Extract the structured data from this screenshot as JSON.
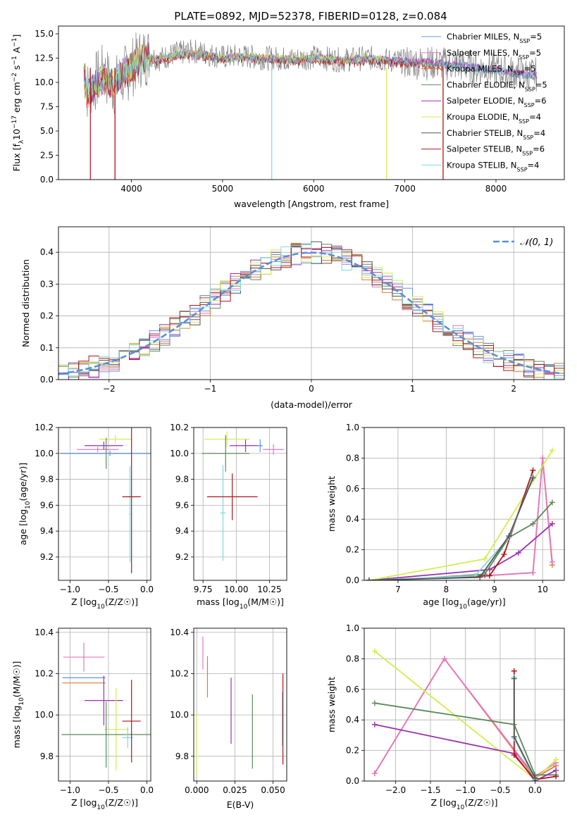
{
  "figure_title": "PLATE=0892, MJD=52378, FIBERID=0128, z=0.084",
  "colors": {
    "chabrier_miles": "#6495ed",
    "salpeter_miles": "#e377c2",
    "kroupa_miles": "#e07b39",
    "chabrier_elodie": "#5b8a5b",
    "salpeter_elodie": "#9b2fae",
    "kroupa_elodie": "#d4ed4a",
    "chabrier_stelib": "#7f7f7f",
    "salpeter_stelib": "#b0141c",
    "kroupa_stelib": "#7fd8dc",
    "normal_curve": "#5b8fd6"
  },
  "chart_data": [
    {
      "id": "spectrum",
      "type": "line",
      "title": "PLATE=0892, MJD=52378, FIBERID=0128, z=0.084",
      "xlabel": "wavelength [Angstrom, rest frame]",
      "ylabel": "Flux [f",
      "ylabel_full": "Flux [f_λ 10^-17 erg cm^-2 s^-1 A^-1]",
      "xlim": [
        3200,
        8750
      ],
      "ylim": [
        0,
        15.8
      ],
      "xticks": [
        4000,
        5000,
        6000,
        7000,
        8000
      ],
      "yticks": [
        0.0,
        2.5,
        5.0,
        7.5,
        10.0,
        12.5,
        15.0
      ],
      "legend_position": "right",
      "series": [
        {
          "name": "Chabrier MILES, N",
          "sub": "SSP",
          "tail": "=5",
          "color": "#6495ed"
        },
        {
          "name": "Salpeter MILES, N",
          "sub": "SSP",
          "tail": "=5",
          "color": "#e377c2"
        },
        {
          "name": "Kroupa MILES, N",
          "sub": "SSP",
          "tail": "=5",
          "color": "#e07b39"
        },
        {
          "name": "Chabrier ELODIE, N",
          "sub": "SSP",
          "tail": "=5",
          "color": "#5b8a5b"
        },
        {
          "name": "Salpeter ELODIE, N",
          "sub": "SSP",
          "tail": "=6",
          "color": "#9b2fae"
        },
        {
          "name": "Kroupa ELODIE, N",
          "sub": "SSP",
          "tail": "=4",
          "color": "#d4ed4a"
        },
        {
          "name": "Chabrier STELIB, N",
          "sub": "SSP",
          "tail": "=4",
          "color": "#555555"
        },
        {
          "name": "Salpeter STELIB, N",
          "sub": "SSP",
          "tail": "=6",
          "color": "#b0141c"
        },
        {
          "name": "Kroupa STELIB, N",
          "sub": "SSP",
          "tail": "=4",
          "color": "#7fd8dc"
        }
      ],
      "data_trace": {
        "x": [
          3500,
          3600,
          3700,
          3800,
          3900,
          4000,
          4100,
          4200,
          4300,
          4500,
          4700,
          5000,
          5200,
          5500,
          5800,
          6000,
          6300,
          6600,
          6900,
          7200,
          7500,
          7800,
          8000,
          8200,
          8400
        ],
        "y": [
          9.0,
          10.0,
          11.0,
          9.5,
          10.5,
          11.5,
          12.5,
          12.8,
          12.4,
          13.0,
          13.2,
          12.6,
          12.7,
          12.5,
          12.4,
          12.6,
          12.3,
          12.5,
          12.2,
          12.0,
          11.9,
          11.5,
          11.3,
          11.0,
          10.8
        ]
      },
      "model_trace": {
        "x": [
          3500,
          3600,
          3700,
          3800,
          3900,
          4000,
          4100,
          4200,
          4300,
          4500,
          4700,
          5000,
          5200,
          5500,
          5800,
          6000,
          6300,
          6600,
          6900,
          7200,
          7500,
          7800,
          8000,
          8200,
          8400
        ],
        "y": [
          8.8,
          9.6,
          10.4,
          9.8,
          10.8,
          11.6,
          12.2,
          12.5,
          12.3,
          12.8,
          12.9,
          12.5,
          12.6,
          12.4,
          12.3,
          12.5,
          12.2,
          12.4,
          12.1,
          12.0,
          11.8,
          11.4,
          11.2,
          10.9,
          10.7
        ]
      }
    },
    {
      "id": "residuals",
      "type": "line",
      "xlabel": "(data-model)/error",
      "ylabel": "Normed distribution",
      "xlim": [
        -2.5,
        2.5
      ],
      "ylim": [
        0,
        0.48
      ],
      "xticks": [
        -2,
        -1,
        0,
        1,
        2
      ],
      "yticks": [
        0.0,
        0.1,
        0.2,
        0.3,
        0.4
      ],
      "grid": true,
      "legend_position": "top-right",
      "legend_label": "𝒩(0, 1)",
      "normal": {
        "mean": 0,
        "sigma": 1
      }
    },
    {
      "id": "age_vs_Z",
      "type": "scatter",
      "xlabel": "Z [log",
      "xlabel_full": "Z [log10(Z/Z⊙)]",
      "ylabel": "age  [log",
      "ylabel_full": "age  [log10(age/yr)]",
      "xlim": [
        -1.15,
        0.05
      ],
      "ylim": [
        9.02,
        10.2
      ],
      "xticks": [
        -1.0,
        -0.5,
        0.0
      ],
      "yticks": [
        9.2,
        9.4,
        9.6,
        9.8,
        10.0,
        10.2
      ],
      "grid": true,
      "points": [
        {
          "x": -0.64,
          "xerr": 0.27,
          "y": 10.03,
          "yerr": 0.02,
          "color": "#e377c2"
        },
        {
          "x": -0.56,
          "xerr": 0.25,
          "y": 10.06,
          "yerr": 0.03,
          "color": "#9b2fae"
        },
        {
          "x": -0.41,
          "xerr": 0.21,
          "y": 10.11,
          "yerr": 0.03,
          "color": "#d4ed4a"
        },
        {
          "x": -0.53,
          "xerr": 0.6,
          "y": 10.0,
          "yerr": 0.12,
          "color": "#5b8a5b"
        },
        {
          "x": -0.48,
          "xerr": 0.62,
          "y": 10.0,
          "yerr": 0.02,
          "color": "#6495ed"
        },
        {
          "x": -0.22,
          "xerr": 0.01,
          "y": 9.53,
          "yerr": 0.37,
          "color": "#7fd8dc"
        },
        {
          "x": -0.2,
          "xerr": 0.12,
          "y": 9.665,
          "yerr": 0.59,
          "color": "#b0141c"
        }
      ]
    },
    {
      "id": "age_vs_mass",
      "type": "scatter",
      "xlabel": "mass [log",
      "xlabel_full": "mass [log10(M/M⊙)]",
      "xlim": [
        9.68,
        10.38
      ],
      "ylim": [
        9.02,
        10.2
      ],
      "xticks": [
        9.75,
        10.0,
        10.25
      ],
      "yticks": [
        9.2,
        9.4,
        9.6,
        9.8,
        10.0,
        10.2
      ],
      "grid": true,
      "points": [
        {
          "x": 10.28,
          "xerr": 0.08,
          "y": 10.03,
          "yerr": 0.04,
          "color": "#e377c2"
        },
        {
          "x": 10.07,
          "xerr": 0.12,
          "y": 10.06,
          "yerr": 0.05,
          "color": "#9b2fae"
        },
        {
          "x": 9.93,
          "xerr": 0.17,
          "y": 10.11,
          "yerr": 0.06,
          "color": "#d4ed4a"
        },
        {
          "x": 9.92,
          "xerr": 0.18,
          "y": 10.0,
          "yerr": 0.14,
          "color": "#5b8a5b"
        },
        {
          "x": 10.18,
          "xerr": 0.02,
          "y": 10.06,
          "yerr": 0.05,
          "color": "#6495ed"
        },
        {
          "x": 9.9,
          "xerr": 0.02,
          "y": 9.54,
          "yerr": 0.37,
          "color": "#7fd8dc"
        },
        {
          "x": 9.97,
          "xerr": 0.19,
          "y": 9.665,
          "yerr": 0.18,
          "color": "#b0141c"
        }
      ]
    },
    {
      "id": "age_mass_weight",
      "type": "line",
      "xlabel": "age  [log",
      "xlabel_full": "age  [log10(age/yr)]",
      "ylabel": "mass weight",
      "xlim": [
        6.3,
        10.45
      ],
      "ylim": [
        0,
        1.0
      ],
      "xticks": [
        7,
        8,
        9,
        10
      ],
      "yticks": [
        0.0,
        0.2,
        0.4,
        0.6,
        0.8,
        1.0
      ],
      "grid": true,
      "series": [
        {
          "color": "#e07b39",
          "x": [
            6.4,
            8.8,
            9.8,
            10.0,
            10.2
          ],
          "y": [
            0.0,
            0.03,
            0.05,
            0.8,
            0.1
          ]
        },
        {
          "color": "#e377c2",
          "x": [
            6.4,
            8.8,
            9.8,
            10.0,
            10.2
          ],
          "y": [
            0.0,
            0.03,
            0.05,
            0.8,
            0.12
          ]
        },
        {
          "color": "#9b2fae",
          "x": [
            6.4,
            8.9,
            9.5,
            10.2
          ],
          "y": [
            0.0,
            0.07,
            0.18,
            0.37
          ]
        },
        {
          "color": "#5b8a5b",
          "x": [
            6.8,
            8.8,
            9.3,
            9.8,
            10.2
          ],
          "y": [
            0.0,
            0.04,
            0.28,
            0.37,
            0.51
          ]
        },
        {
          "color": "#d4ed4a",
          "x": [
            6.4,
            8.8,
            10.2
          ],
          "y": [
            0.0,
            0.14,
            0.85
          ]
        },
        {
          "color": "#b0141c",
          "x": [
            6.4,
            8.9,
            9.2,
            9.8
          ],
          "y": [
            0.0,
            0.03,
            0.17,
            0.72
          ]
        },
        {
          "color": "#7fd8dc",
          "x": [
            6.4,
            8.6,
            9.3,
            9.8
          ],
          "y": [
            0.0,
            0.03,
            0.28,
            0.68
          ]
        },
        {
          "color": "#555555",
          "x": [
            6.4,
            8.7,
            9.3,
            9.8
          ],
          "y": [
            0.0,
            0.02,
            0.29,
            0.67
          ]
        }
      ]
    },
    {
      "id": "mass_vs_Z",
      "type": "scatter",
      "xlabel": "Z [log",
      "xlabel_full": "Z [log10(Z/Z⊙)]",
      "ylabel": "mass [log",
      "ylabel_full": "mass [log10(M/M⊙)]",
      "xlim": [
        -1.15,
        0.05
      ],
      "ylim": [
        9.68,
        10.42
      ],
      "xticks": [
        -1.0,
        -0.5,
        0.0
      ],
      "yticks": [
        9.8,
        10.0,
        10.2,
        10.4
      ],
      "grid": true,
      "points": [
        {
          "x": -0.82,
          "xerr": 0.27,
          "y": 10.28,
          "yerr": 0.07,
          "color": "#e377c2"
        },
        {
          "x": -0.82,
          "xerr": 0.28,
          "y": 10.18,
          "yerr": 0.0,
          "color": "#6495ed"
        },
        {
          "x": -0.82,
          "xerr": 0.28,
          "y": 10.155,
          "yerr": 0.0,
          "color": "#e07b39"
        },
        {
          "x": -0.56,
          "xerr": 0.25,
          "y": 10.07,
          "yerr": 0.12,
          "color": "#9b2fae"
        },
        {
          "x": -0.4,
          "xerr": 0.16,
          "y": 9.93,
          "yerr": 0.2,
          "color": "#d4ed4a"
        },
        {
          "x": -0.53,
          "xerr": 0.58,
          "y": 9.905,
          "yerr": 0.16,
          "color": "#5b8a5b"
        },
        {
          "x": -0.25,
          "xerr": 0.07,
          "y": 9.89,
          "yerr": 0.05,
          "color": "#7fd8dc"
        },
        {
          "x": -0.2,
          "xerr": 0.12,
          "y": 9.97,
          "yerr": 0.2,
          "color": "#b0141c"
        }
      ]
    },
    {
      "id": "mass_vs_ebv",
      "type": "scatter",
      "xlabel": "E(B-V)",
      "xlim": [
        -0.002,
        0.059
      ],
      "ylim": [
        9.68,
        10.42
      ],
      "xticks": [
        0.0,
        0.025,
        0.05
      ],
      "xtick_labels": [
        "0.000",
        "0.025",
        "0.050"
      ],
      "yticks": [
        9.8,
        10.0,
        10.2,
        10.4
      ],
      "grid": true,
      "points": [
        {
          "x": 0.004,
          "y": 10.3,
          "yerr": 0.08,
          "color": "#e377c2"
        },
        {
          "x": 0.007,
          "y": 10.185,
          "yerr": 0.1,
          "color": "#e07b39"
        },
        {
          "x": 0.0225,
          "y": 10.02,
          "yerr": 0.16,
          "color": "#9b2fae"
        },
        {
          "x": 0.0365,
          "y": 9.92,
          "yerr": 0.18,
          "color": "#5b8a5b"
        },
        {
          "x": 0.0,
          "y": 9.86,
          "yerr": 0.15,
          "color": "#d4ed4a"
        },
        {
          "x": 0.056,
          "y": 9.98,
          "yerr": 0.13,
          "color": "#7fd8dc"
        },
        {
          "x": 0.0565,
          "y": 9.98,
          "yerr": 0.22,
          "color": "#b0141c"
        }
      ]
    },
    {
      "id": "Z_mass_weight",
      "type": "line",
      "xlabel": "Z [log",
      "xlabel_full": "Z [log10(Z/Z⊙)]",
      "ylabel": "mass weight",
      "xlim": [
        -2.45,
        0.42
      ],
      "ylim": [
        0,
        1.0
      ],
      "xticks": [
        -2.0,
        -1.5,
        -1.0,
        -0.5,
        0.0
      ],
      "yticks": [
        0.0,
        0.2,
        0.4,
        0.6,
        0.8,
        1.0
      ],
      "grid": true,
      "series": [
        {
          "color": "#e07b39",
          "x": [
            -2.3,
            -1.3,
            0.0,
            0.3
          ],
          "y": [
            0.05,
            0.8,
            0.02,
            0.1
          ]
        },
        {
          "color": "#e377c2",
          "x": [
            -2.3,
            -1.3,
            0.0,
            0.3
          ],
          "y": [
            0.05,
            0.8,
            0.03,
            0.12
          ]
        },
        {
          "color": "#d4ed4a",
          "x": [
            -2.3,
            0.0,
            0.3
          ],
          "y": [
            0.85,
            0.01,
            0.14
          ]
        },
        {
          "color": "#5b8a5b",
          "x": [
            -2.3,
            -0.3,
            0.0,
            0.3
          ],
          "y": [
            0.51,
            0.37,
            0.04,
            0.04
          ]
        },
        {
          "color": "#9b2fae",
          "x": [
            -2.3,
            -0.3,
            0.0,
            0.3
          ],
          "y": [
            0.37,
            0.18,
            0.0,
            0.07
          ]
        },
        {
          "color": "#b0141c",
          "x": [
            -0.3,
            -0.3,
            0.0,
            0.3
          ],
          "y": [
            0.72,
            0.17,
            0.01,
            0.03
          ]
        },
        {
          "color": "#7fd8dc",
          "x": [
            -0.3,
            -0.3,
            0.0
          ],
          "y": [
            0.68,
            0.28,
            0.01
          ]
        },
        {
          "color": "#555555",
          "x": [
            -0.3,
            -0.3,
            0.0
          ],
          "y": [
            0.67,
            0.29,
            0.02
          ]
        }
      ]
    }
  ]
}
